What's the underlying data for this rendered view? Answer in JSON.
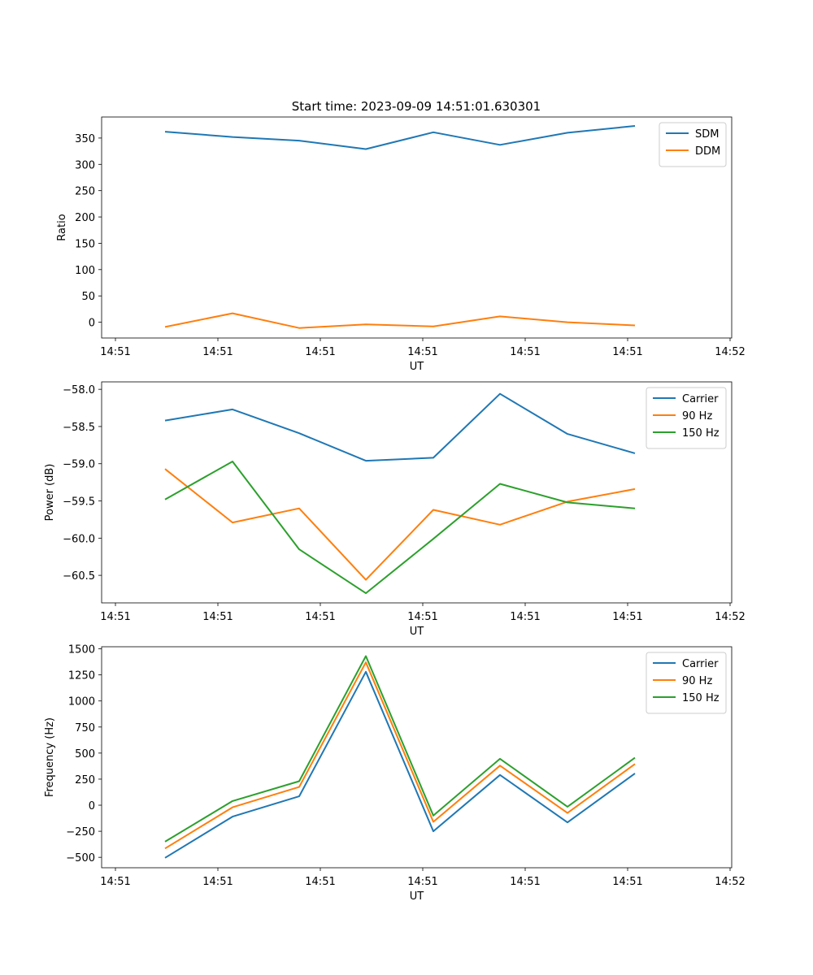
{
  "figure_title": "Start time: 2023-09-09 14:51:01.630301",
  "chart_data": [
    {
      "type": "line",
      "title": "Start time: 2023-09-09 14:51:01.630301",
      "xlabel": "UT",
      "ylabel": "Ratio",
      "x_ticks": [
        "14:51",
        "14:51",
        "14:51",
        "14:51",
        "14:51",
        "14:51",
        "14:52"
      ],
      "y_ticks": [
        0,
        50,
        100,
        150,
        200,
        250,
        300,
        350
      ],
      "ylim": [
        -30,
        390
      ],
      "legend_position": "top-right",
      "series": [
        {
          "name": "SDM",
          "color": "#1f77b4",
          "values": [
            362,
            352,
            345,
            329,
            361,
            337,
            360,
            373
          ]
        },
        {
          "name": "DDM",
          "color": "#ff7f0e",
          "values": [
            -9,
            17,
            -11,
            -4,
            -8,
            11,
            0,
            -6
          ]
        }
      ]
    },
    {
      "type": "line",
      "title": "",
      "xlabel": "UT",
      "ylabel": "Power (dB)",
      "x_ticks": [
        "14:51",
        "14:51",
        "14:51",
        "14:51",
        "14:51",
        "14:51",
        "14:52"
      ],
      "y_ticks": [
        -60.5,
        -60.0,
        -59.5,
        -59.0,
        -58.5,
        -58.0
      ],
      "ylim": [
        -60.87,
        -57.9
      ],
      "legend_position": "top-right",
      "series": [
        {
          "name": "Carrier",
          "color": "#1f77b4",
          "values": [
            -58.42,
            -58.27,
            -58.59,
            -58.96,
            -58.92,
            -58.06,
            -58.6,
            -58.86
          ]
        },
        {
          "name": "90 Hz",
          "color": "#ff7f0e",
          "values": [
            -59.07,
            -59.79,
            -59.6,
            -60.56,
            -59.62,
            -59.82,
            -59.51,
            -59.34
          ]
        },
        {
          "name": "150 Hz",
          "color": "#2ca02c",
          "values": [
            -59.48,
            -58.97,
            -60.15,
            -60.74,
            -60.01,
            -59.27,
            -59.52,
            -59.6
          ]
        }
      ]
    },
    {
      "type": "line",
      "title": "",
      "xlabel": "UT",
      "ylabel": "Frequency (Hz)",
      "x_ticks": [
        "14:51",
        "14:51",
        "14:51",
        "14:51",
        "14:51",
        "14:51",
        "14:52"
      ],
      "y_ticks": [
        -500,
        -250,
        0,
        250,
        500,
        750,
        1000,
        1250,
        1500
      ],
      "ylim": [
        -600,
        1520
      ],
      "legend_position": "top-right",
      "series": [
        {
          "name": "Carrier",
          "color": "#1f77b4",
          "values": [
            -505,
            -110,
            85,
            1280,
            -250,
            290,
            -165,
            305
          ]
        },
        {
          "name": "90 Hz",
          "color": "#ff7f0e",
          "values": [
            -415,
            -20,
            175,
            1370,
            -160,
            380,
            -75,
            395
          ]
        },
        {
          "name": "150 Hz",
          "color": "#2ca02c",
          "values": [
            -350,
            40,
            230,
            1430,
            -100,
            445,
            -15,
            455
          ]
        }
      ]
    }
  ]
}
